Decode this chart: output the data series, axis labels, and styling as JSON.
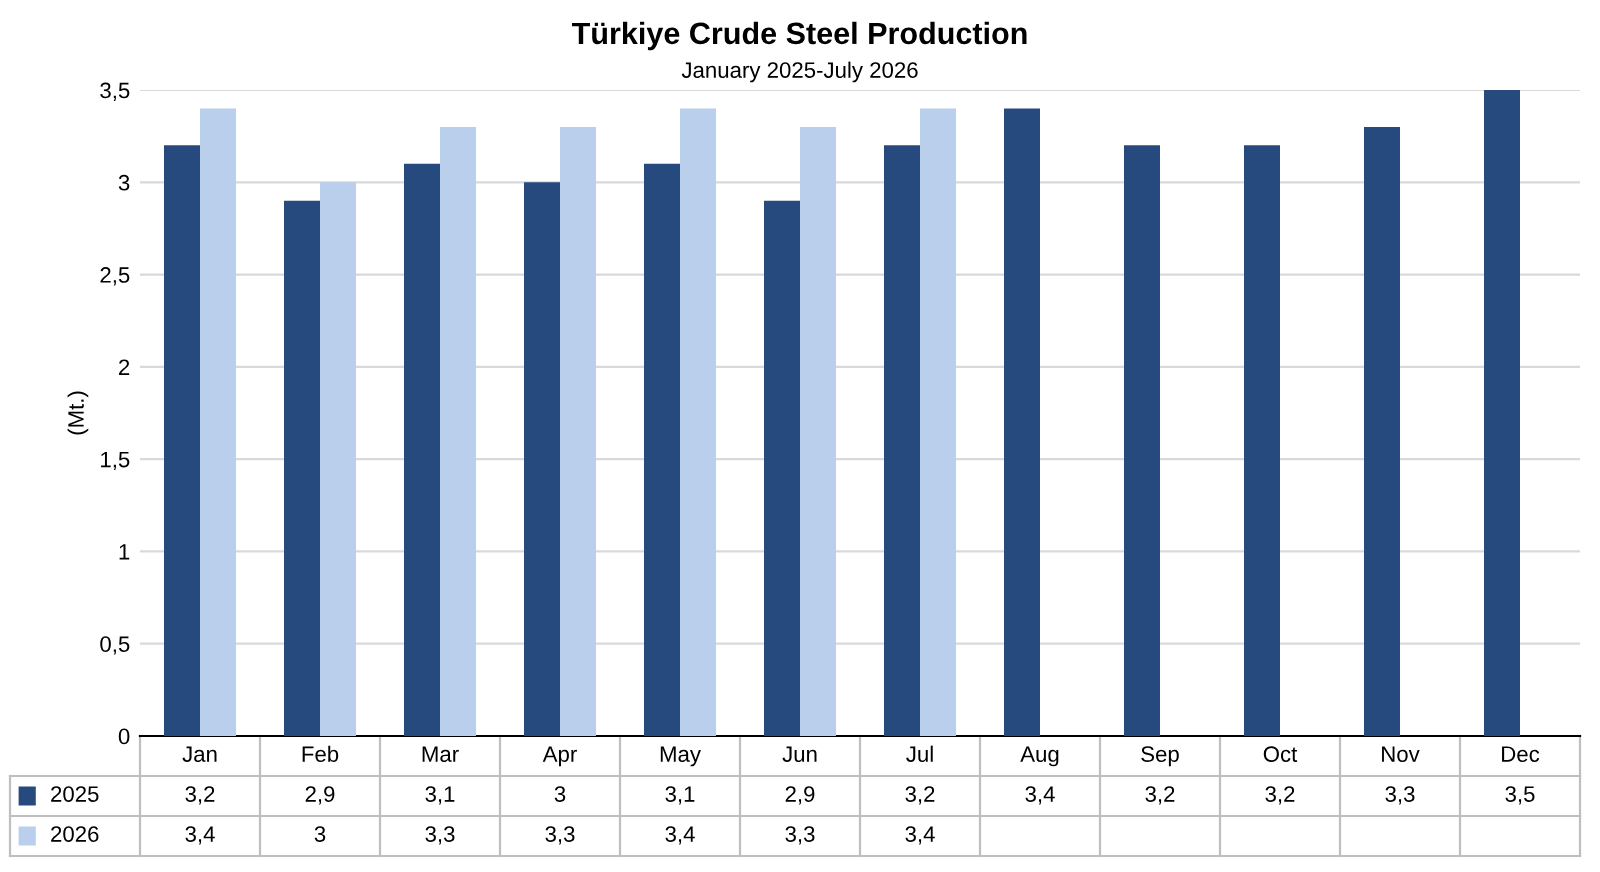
{
  "chart_data": {
    "type": "bar",
    "title": "Türkiye Crude Steel Production",
    "subtitle": "January 2025-July 2026",
    "ylabel": "(Mt.)",
    "categories": [
      "Jan",
      "Feb",
      "Mar",
      "Apr",
      "May",
      "Jun",
      "Jul",
      "Aug",
      "Sep",
      "Oct",
      "Nov",
      "Dec"
    ],
    "series": [
      {
        "name": "2025",
        "color": "#264a7e",
        "values": [
          3.2,
          2.9,
          3.1,
          3,
          3.1,
          2.9,
          3.2,
          3.4,
          3.2,
          3.2,
          3.3,
          3.5
        ],
        "value_labels": [
          "3,2",
          "2,9",
          "3,1",
          "3",
          "3,1",
          "2,9",
          "3,2",
          "3,4",
          "3,2",
          "3,2",
          "3,3",
          "3,5"
        ]
      },
      {
        "name": "2026",
        "color": "#b9cfec",
        "values": [
          3.4,
          3,
          3.3,
          3.3,
          3.4,
          3.3,
          3.4,
          null,
          null,
          null,
          null,
          null
        ],
        "value_labels": [
          "3,4",
          "3",
          "3,3",
          "3,3",
          "3,4",
          "3,3",
          "3,4",
          null,
          null,
          null,
          null,
          null
        ]
      }
    ],
    "ylim": [
      0,
      3.5
    ],
    "yticks": [
      0,
      {
        "value": 0.5,
        "label": "0,5"
      },
      1,
      {
        "value": 1.5,
        "label": "1,5"
      },
      2,
      {
        "value": 2.5,
        "label": "2,5"
      },
      3,
      {
        "value": 3.5,
        "label": "3,5"
      }
    ],
    "grid": "y",
    "legend": "bottom left"
  }
}
